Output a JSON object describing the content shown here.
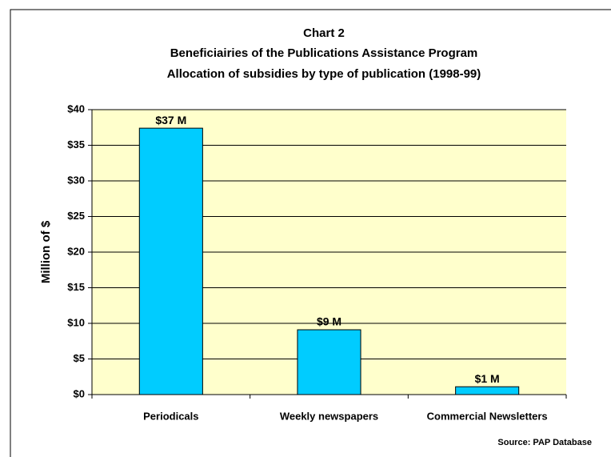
{
  "chart_data": {
    "type": "bar",
    "title": [
      "Chart 2",
      "Beneficiairies of the Publications Assistance Program",
      "Allocation of subsidies by type of publication (1998-99)"
    ],
    "y_label": "Million of $",
    "source": "Source: PAP Database",
    "categories": [
      "Periodicals",
      "Weekly newspapers",
      "Commercial Newsletters"
    ],
    "values": [
      37.4,
      9.1,
      1.1
    ],
    "value_labels": [
      "$37 M",
      "$9 M",
      "$1 M"
    ],
    "color": "#00ccff",
    "plot_background": "#ffffcc",
    "ylim": [
      0,
      40
    ],
    "yticks": [
      {
        "value": 0,
        "label": "$0"
      },
      {
        "value": 5,
        "label": "$5"
      },
      {
        "value": 10,
        "label": "$10"
      },
      {
        "value": 15,
        "label": "$15"
      },
      {
        "value": 20,
        "label": "$20"
      },
      {
        "value": 25,
        "label": "$25"
      },
      {
        "value": 30,
        "label": "$30"
      },
      {
        "value": 35,
        "label": "$35"
      },
      {
        "value": 40,
        "label": "$40"
      }
    ],
    "grid": true
  }
}
